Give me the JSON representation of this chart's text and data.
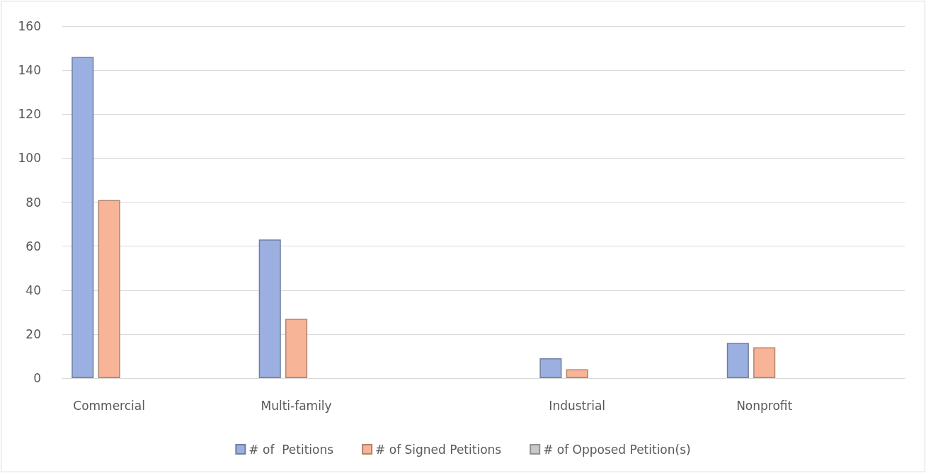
{
  "chart_data": {
    "type": "bar",
    "categories": [
      "Commercial",
      null,
      "Multi-family",
      null,
      null,
      "Industrial",
      null,
      "Nonprofit",
      null
    ],
    "series": [
      {
        "name": "# of  Petitions",
        "color": "#9bb0e0",
        "values": [
          146,
          null,
          63,
          null,
          null,
          9,
          null,
          16,
          null
        ]
      },
      {
        "name": "# of Signed Petitions",
        "color": "#f7b496",
        "values": [
          81,
          null,
          27,
          null,
          null,
          4,
          null,
          14,
          null
        ]
      },
      {
        "name": "# of Opposed Petition(s)",
        "color": "#c8c8c8",
        "values": [
          0,
          null,
          0,
          null,
          null,
          0,
          null,
          0,
          null
        ]
      }
    ],
    "ylim": [
      0,
      160
    ],
    "yticks": [
      0,
      20,
      40,
      60,
      80,
      100,
      120,
      140,
      160
    ],
    "grid": "y",
    "legend": "bottom"
  }
}
